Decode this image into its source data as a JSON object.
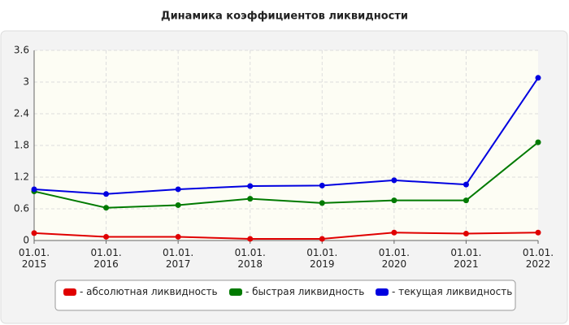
{
  "chart_data": {
    "type": "line",
    "title": "Динамика коэффициентов ликвидности",
    "categories": [
      "01.01. 2015",
      "01.01. 2016",
      "01.01. 2017",
      "01.01. 2018",
      "01.01. 2019",
      "01.01. 2020",
      "01.01. 2021",
      "01.01. 2022"
    ],
    "series": [
      {
        "name": "- абсолютная ликвидность",
        "color": "#e00000",
        "values": [
          0.14,
          0.07,
          0.07,
          0.03,
          0.03,
          0.15,
          0.13,
          0.15
        ]
      },
      {
        "name": "- быстрая ликвидность",
        "color": "#007a00",
        "values": [
          0.93,
          0.62,
          0.67,
          0.79,
          0.71,
          0.76,
          0.76,
          1.86
        ]
      },
      {
        "name": "- текущая ликвидность",
        "color": "#0000e0",
        "values": [
          0.97,
          0.88,
          0.97,
          1.03,
          1.04,
          1.14,
          1.06,
          3.08
        ]
      }
    ],
    "ylim": [
      0,
      3.6
    ],
    "yticks": [
      0,
      0.6,
      1.2,
      1.8,
      2.4,
      3,
      3.6
    ],
    "grid": true
  }
}
